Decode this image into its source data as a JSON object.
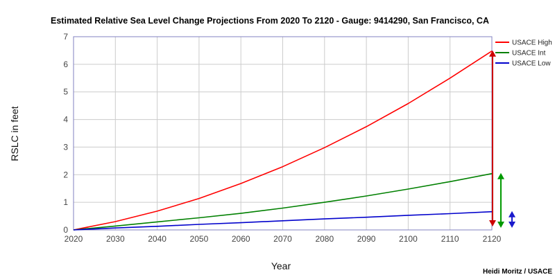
{
  "chart_data": {
    "type": "line",
    "title": "Estimated Relative Sea Level Change Projections From 2020 To 2120 - Gauge: 9414290, San Francisco, CA",
    "xlabel": "Year",
    "ylabel": "RSLC in feet",
    "xlim": [
      2020,
      2120
    ],
    "ylim": [
      0,
      7
    ],
    "x_ticks": [
      "2020",
      "2030",
      "2040",
      "2050",
      "2060",
      "2070",
      "2080",
      "2090",
      "2100",
      "2110",
      "2120"
    ],
    "y_ticks": [
      "0",
      "1",
      "2",
      "3",
      "4",
      "5",
      "6",
      "7"
    ],
    "grid": true,
    "legend_position": "right",
    "x": [
      2020,
      2030,
      2040,
      2050,
      2060,
      2070,
      2080,
      2090,
      2100,
      2110,
      2120
    ],
    "series": [
      {
        "name": "USACE High",
        "color": "#ff0000",
        "values": [
          0.0,
          0.3,
          0.68,
          1.14,
          1.68,
          2.29,
          2.98,
          3.74,
          4.58,
          5.5,
          6.48
        ]
      },
      {
        "name": "USACE Int",
        "color": "#008000",
        "values": [
          0.0,
          0.14,
          0.29,
          0.44,
          0.6,
          0.79,
          1.0,
          1.23,
          1.48,
          1.75,
          2.04
        ]
      },
      {
        "name": "USACE Low",
        "color": "#0000cc",
        "values": [
          0.0,
          0.07,
          0.13,
          0.2,
          0.26,
          0.33,
          0.4,
          0.46,
          0.53,
          0.59,
          0.66
        ]
      }
    ],
    "range_arrows": [
      {
        "series": "USACE High",
        "from": 0.15,
        "to": 6.48,
        "color": "#cc0000"
      },
      {
        "series": "USACE Int",
        "from": 0.1,
        "to": 2.04,
        "color": "#009900"
      },
      {
        "series": "USACE Low",
        "from": 0.1,
        "to": 0.66,
        "color": "#1a1acc"
      }
    ]
  },
  "credit": "Heidi Moritz / USACE"
}
